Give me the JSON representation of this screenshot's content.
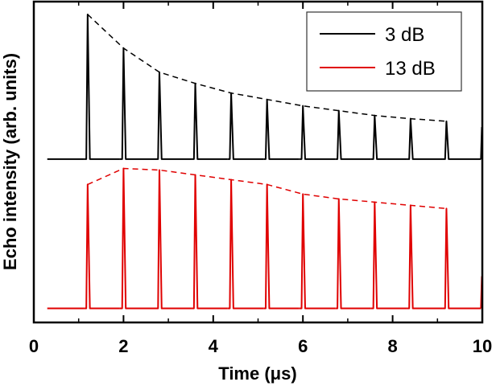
{
  "chart_data": {
    "type": "line",
    "xlabel": "Time (μs)",
    "ylabel": "Echo intensity (arb. units)",
    "xlim": [
      0,
      10
    ],
    "ylim": [
      0,
      1
    ],
    "x_ticks": [
      0,
      2,
      4,
      6,
      8,
      10
    ],
    "x_tick_labels": [
      "0",
      "2",
      "4",
      "6",
      "8",
      "10"
    ],
    "y_ticks_labeled": false,
    "legend_position": "top-right",
    "series": [
      {
        "name": "3 dB",
        "color": "#000000",
        "baseline": 0.509,
        "echo_times": [
          1.2,
          2.0,
          2.8,
          3.6,
          4.4,
          5.2,
          6.0,
          6.8,
          7.6,
          8.4,
          9.2
        ],
        "echo_peaks": [
          0.96,
          0.855,
          0.78,
          0.745,
          0.715,
          0.695,
          0.675,
          0.66,
          0.645,
          0.635,
          0.627
        ],
        "envelope": "dashed"
      },
      {
        "name": "13 dB",
        "color": "#e00000",
        "baseline": 0.044,
        "echo_times": [
          1.2,
          2.0,
          2.8,
          3.6,
          4.4,
          5.2,
          6.0,
          6.8,
          7.6,
          8.4,
          9.2
        ],
        "echo_peaks": [
          0.43,
          0.48,
          0.475,
          0.46,
          0.445,
          0.43,
          0.4,
          0.385,
          0.375,
          0.365,
          0.355
        ],
        "envelope": "dashed"
      }
    ]
  }
}
